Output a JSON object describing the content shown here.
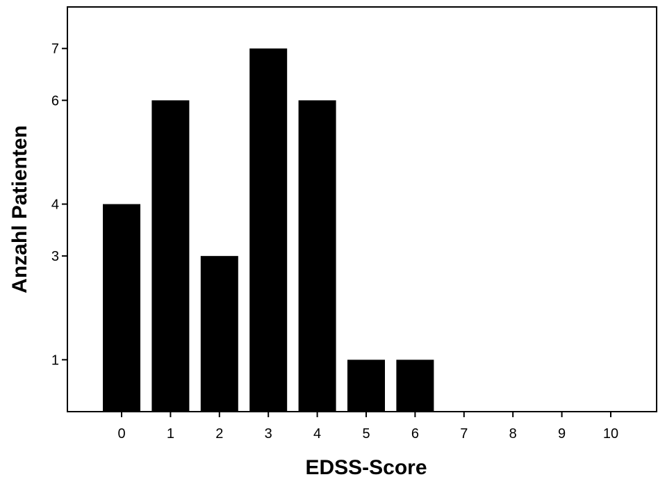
{
  "chart_data": {
    "type": "bar",
    "categories": [
      "0",
      "1",
      "2",
      "3",
      "4",
      "5",
      "6",
      "7",
      "8",
      "9",
      "10"
    ],
    "values": [
      4,
      6,
      3,
      7,
      6,
      1,
      1,
      0,
      0,
      0,
      0
    ],
    "title": "",
    "xlabel": "EDSS-Score",
    "ylabel": "Anzahl Patienten",
    "yticks": [
      1,
      3,
      4,
      6,
      7
    ],
    "ylim": [
      0,
      7.8
    ],
    "bar_color": "#000000",
    "grid": false,
    "legend": "none"
  }
}
